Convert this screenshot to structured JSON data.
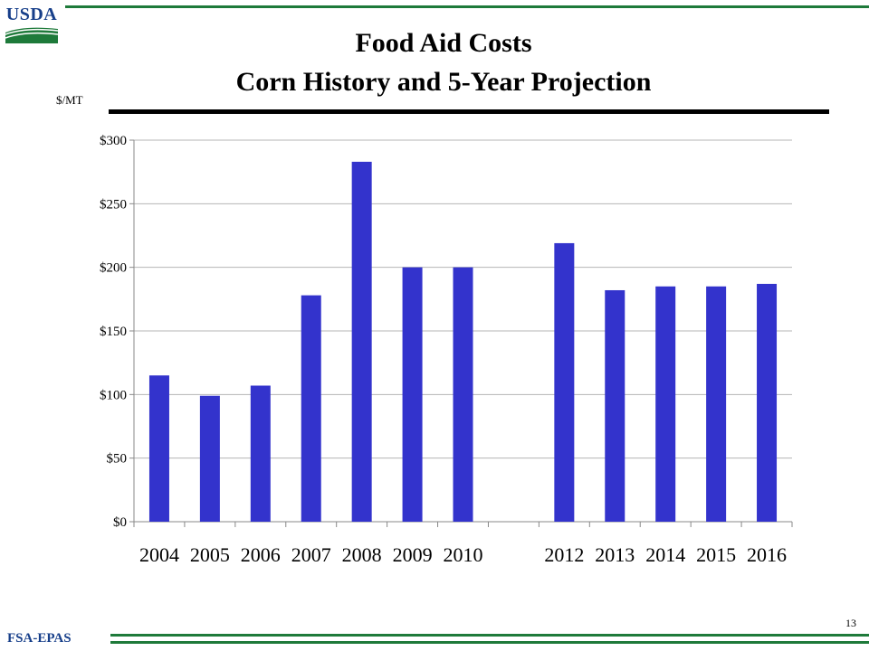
{
  "header": {
    "logo_text": "USDA",
    "title_line1": "Food Aid Costs",
    "title_line2": "Corn History and 5-Year Projection"
  },
  "footer": {
    "label": "FSA-EPAS",
    "page_number": "13"
  },
  "colors": {
    "bar": "#3333cc",
    "accent_green": "#1e7a3a",
    "brand_blue": "#173f8a"
  },
  "chart_data": {
    "type": "bar",
    "title": "Food Aid Costs Corn History and 5-Year Projection",
    "ylabel": "$/MT",
    "categories": [
      "2004",
      "2005",
      "2006",
      "2007",
      "2008",
      "2009",
      "2010",
      "",
      "2012",
      "2013",
      "2014",
      "2015",
      "2016"
    ],
    "values": [
      115,
      99,
      107,
      178,
      283,
      200,
      200,
      null,
      219,
      182,
      185,
      185,
      187
    ],
    "ylim": [
      0,
      300
    ],
    "yticks": [
      0,
      50,
      100,
      150,
      200,
      250,
      300
    ],
    "ytick_labels": [
      "$0",
      "$50",
      "$100",
      "$150",
      "$200",
      "$250",
      "$300"
    ],
    "grid": true,
    "legend": "none"
  }
}
